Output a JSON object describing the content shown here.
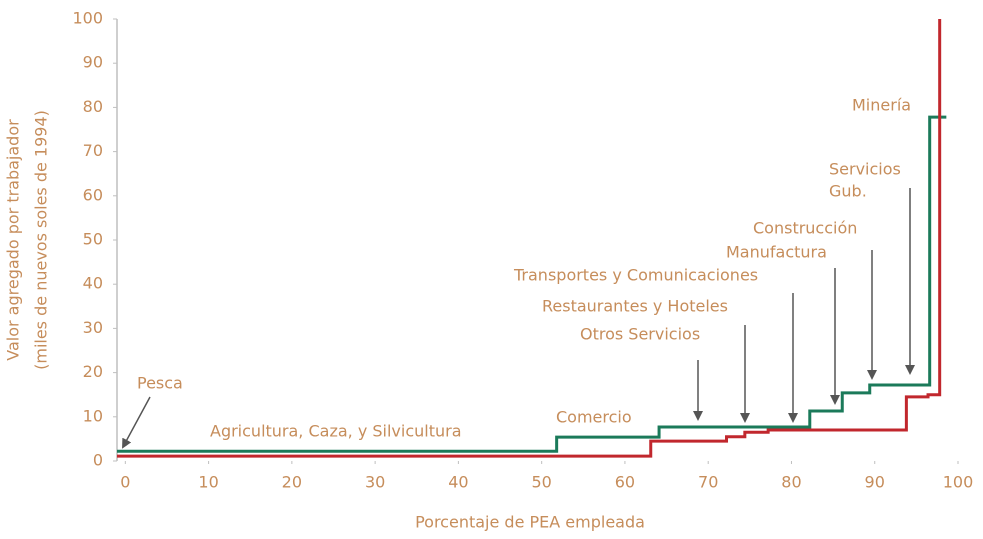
{
  "chart_data": {
    "type": "line",
    "step": "post",
    "y_label": [
      "Valor agregado por trabajador",
      "(miles de nuevos soles de 1994)"
    ],
    "x_label": "Porcentaje de PEA empleada",
    "xlim": [
      -1,
      100
    ],
    "xticks": [
      0,
      10,
      20,
      30,
      40,
      50,
      60,
      70,
      80,
      90,
      100
    ],
    "ylim": [
      0,
      100
    ],
    "yticks": [
      0,
      10,
      20,
      30,
      40,
      50,
      60,
      70,
      80,
      90,
      100
    ],
    "grid": false,
    "series": [
      {
        "color": "#1b7a5a",
        "x": [
          -1,
          51.8,
          64.1,
          82.2,
          86.1,
          89.4,
          96.6,
          98.6
        ],
        "values": [
          2.2,
          5.4,
          7.7,
          11.3,
          15.4,
          17.2,
          77.8,
          77.8
        ]
      },
      {
        "color": "#c1272d",
        "x": [
          -1,
          63.1,
          72.2,
          74.4,
          77.2,
          93.8,
          96.4,
          97.8
        ],
        "values": [
          1.1,
          4.5,
          5.5,
          6.5,
          7.0,
          14.5,
          15.0,
          100
        ]
      }
    ],
    "annotations": [
      "Pesca",
      "Agricultura, Caza, y Silvicultura",
      "Comercio",
      "Otros Servicios",
      "Restaurantes y Hoteles",
      "Transportes y Comunicaciones",
      "Manufactura",
      "Construcción",
      [
        "Servicios",
        "Gub."
      ],
      "Minería"
    ]
  }
}
